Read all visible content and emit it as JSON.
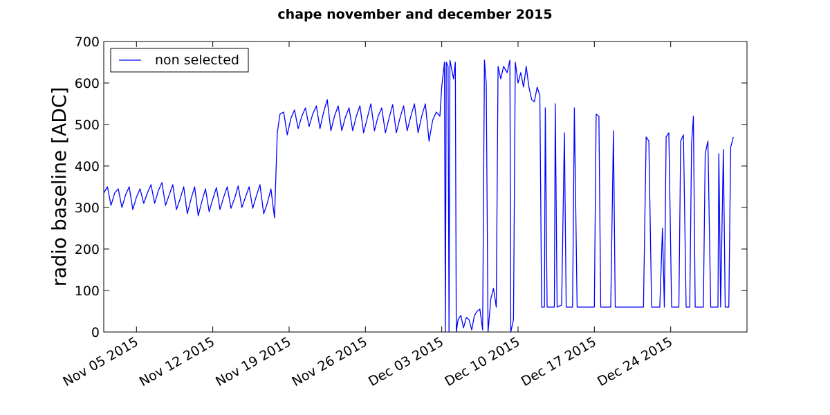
{
  "chart_data": {
    "type": "line",
    "title": "chape november and december 2015",
    "xlabel": "",
    "ylabel": "radio baseline [ADC]",
    "x_range": [
      "2015-11-02",
      "2015-12-31"
    ],
    "ylim": [
      0,
      700
    ],
    "yticks": [
      0,
      100,
      200,
      300,
      400,
      500,
      600,
      700
    ],
    "xticks": [
      {
        "date": "2015-11-05",
        "label": "Nov 05 2015"
      },
      {
        "date": "2015-11-12",
        "label": "Nov 12 2015"
      },
      {
        "date": "2015-11-19",
        "label": "Nov 19 2015"
      },
      {
        "date": "2015-11-26",
        "label": "Nov 26 2015"
      },
      {
        "date": "2015-12-03",
        "label": "Dec 03 2015"
      },
      {
        "date": "2015-12-10",
        "label": "Dec 10 2015"
      },
      {
        "date": "2015-12-17",
        "label": "Dec 17 2015"
      },
      {
        "date": "2015-12-24",
        "label": "Dec 24 2015"
      }
    ],
    "grid": false,
    "legend_position": "top-left",
    "series": [
      {
        "name": "non selected",
        "color": "#0000ff",
        "points": [
          [
            "2015-11-02 00:00",
            335
          ],
          [
            "2015-11-02 08:00",
            350
          ],
          [
            "2015-11-02 16:00",
            305
          ],
          [
            "2015-11-03 00:00",
            335
          ],
          [
            "2015-11-03 08:00",
            345
          ],
          [
            "2015-11-03 16:00",
            300
          ],
          [
            "2015-11-04 00:00",
            330
          ],
          [
            "2015-11-04 08:00",
            350
          ],
          [
            "2015-11-04 16:00",
            295
          ],
          [
            "2015-11-05 00:00",
            325
          ],
          [
            "2015-11-05 08:00",
            345
          ],
          [
            "2015-11-05 16:00",
            310
          ],
          [
            "2015-11-06 00:00",
            335
          ],
          [
            "2015-11-06 08:00",
            355
          ],
          [
            "2015-11-06 16:00",
            310
          ],
          [
            "2015-11-07 00:00",
            340
          ],
          [
            "2015-11-07 08:00",
            360
          ],
          [
            "2015-11-07 16:00",
            305
          ],
          [
            "2015-11-08 00:00",
            330
          ],
          [
            "2015-11-08 08:00",
            355
          ],
          [
            "2015-11-08 16:00",
            295
          ],
          [
            "2015-11-09 00:00",
            320
          ],
          [
            "2015-11-09 08:00",
            350
          ],
          [
            "2015-11-09 16:00",
            285
          ],
          [
            "2015-11-10 00:00",
            320
          ],
          [
            "2015-11-10 08:00",
            350
          ],
          [
            "2015-11-10 16:00",
            280
          ],
          [
            "2015-11-11 00:00",
            315
          ],
          [
            "2015-11-11 08:00",
            345
          ],
          [
            "2015-11-11 16:00",
            290
          ],
          [
            "2015-11-12 00:00",
            320
          ],
          [
            "2015-11-12 08:00",
            348
          ],
          [
            "2015-11-12 16:00",
            295
          ],
          [
            "2015-11-13 00:00",
            325
          ],
          [
            "2015-11-13 08:00",
            350
          ],
          [
            "2015-11-13 16:00",
            298
          ],
          [
            "2015-11-14 00:00",
            322
          ],
          [
            "2015-11-14 08:00",
            352
          ],
          [
            "2015-11-14 16:00",
            300
          ],
          [
            "2015-11-15 00:00",
            325
          ],
          [
            "2015-11-15 08:00",
            350
          ],
          [
            "2015-11-15 16:00",
            298
          ],
          [
            "2015-11-16 00:00",
            328
          ],
          [
            "2015-11-16 08:00",
            355
          ],
          [
            "2015-11-16 16:00",
            285
          ],
          [
            "2015-11-17 00:00",
            310
          ],
          [
            "2015-11-17 08:00",
            345
          ],
          [
            "2015-11-17 16:00",
            275
          ],
          [
            "2015-11-17 22:00",
            480
          ],
          [
            "2015-11-18 04:00",
            525
          ],
          [
            "2015-11-18 12:00",
            530
          ],
          [
            "2015-11-18 20:00",
            475
          ],
          [
            "2015-11-19 04:00",
            515
          ],
          [
            "2015-11-19 12:00",
            535
          ],
          [
            "2015-11-19 20:00",
            490
          ],
          [
            "2015-11-20 04:00",
            520
          ],
          [
            "2015-11-20 12:00",
            540
          ],
          [
            "2015-11-20 20:00",
            495
          ],
          [
            "2015-11-21 04:00",
            525
          ],
          [
            "2015-11-21 12:00",
            545
          ],
          [
            "2015-11-21 20:00",
            490
          ],
          [
            "2015-11-22 04:00",
            530
          ],
          [
            "2015-11-22 12:00",
            560
          ],
          [
            "2015-11-22 20:00",
            485
          ],
          [
            "2015-11-23 04:00",
            520
          ],
          [
            "2015-11-23 12:00",
            545
          ],
          [
            "2015-11-23 20:00",
            485
          ],
          [
            "2015-11-24 04:00",
            518
          ],
          [
            "2015-11-24 12:00",
            540
          ],
          [
            "2015-11-24 20:00",
            485
          ],
          [
            "2015-11-25 04:00",
            520
          ],
          [
            "2015-11-25 12:00",
            545
          ],
          [
            "2015-11-25 20:00",
            480
          ],
          [
            "2015-11-26 04:00",
            515
          ],
          [
            "2015-11-26 12:00",
            550
          ],
          [
            "2015-11-26 20:00",
            485
          ],
          [
            "2015-11-27 04:00",
            520
          ],
          [
            "2015-11-27 12:00",
            540
          ],
          [
            "2015-11-27 20:00",
            480
          ],
          [
            "2015-11-28 04:00",
            515
          ],
          [
            "2015-11-28 12:00",
            548
          ],
          [
            "2015-11-28 20:00",
            480
          ],
          [
            "2015-11-29 04:00",
            515
          ],
          [
            "2015-11-29 12:00",
            545
          ],
          [
            "2015-11-29 20:00",
            485
          ],
          [
            "2015-11-30 04:00",
            520
          ],
          [
            "2015-11-30 12:00",
            550
          ],
          [
            "2015-11-30 20:00",
            480
          ],
          [
            "2015-12-01 04:00",
            520
          ],
          [
            "2015-12-01 12:00",
            550
          ],
          [
            "2015-12-01 20:00",
            460
          ],
          [
            "2015-12-02 04:00",
            510
          ],
          [
            "2015-12-02 12:00",
            530
          ],
          [
            "2015-12-02 20:00",
            520
          ],
          [
            "2015-12-03 00:00",
            590
          ],
          [
            "2015-12-03 06:00",
            650
          ],
          [
            "2015-12-03 08:00",
            0
          ],
          [
            "2015-12-03 10:00",
            650
          ],
          [
            "2015-12-03 14:00",
            640
          ],
          [
            "2015-12-03 16:00",
            0
          ],
          [
            "2015-12-03 18:00",
            655
          ],
          [
            "2015-12-04 02:00",
            610
          ],
          [
            "2015-12-04 06:00",
            650
          ],
          [
            "2015-12-04 08:00",
            0
          ],
          [
            "2015-12-04 12:00",
            30
          ],
          [
            "2015-12-04 18:00",
            40
          ],
          [
            "2015-12-05 00:00",
            10
          ],
          [
            "2015-12-05 06:00",
            35
          ],
          [
            "2015-12-05 12:00",
            30
          ],
          [
            "2015-12-05 18:00",
            5
          ],
          [
            "2015-12-06 00:00",
            40
          ],
          [
            "2015-12-06 06:00",
            50
          ],
          [
            "2015-12-06 12:00",
            55
          ],
          [
            "2015-12-06 18:00",
            5
          ],
          [
            "2015-12-06 22:00",
            655
          ],
          [
            "2015-12-07 02:00",
            600
          ],
          [
            "2015-12-07 06:00",
            0
          ],
          [
            "2015-12-07 12:00",
            80
          ],
          [
            "2015-12-07 18:00",
            105
          ],
          [
            "2015-12-08 00:00",
            60
          ],
          [
            "2015-12-08 04:00",
            640
          ],
          [
            "2015-12-08 10:00",
            610
          ],
          [
            "2015-12-08 16:00",
            640
          ],
          [
            "2015-12-09 00:00",
            625
          ],
          [
            "2015-12-09 06:00",
            655
          ],
          [
            "2015-12-09 08:00",
            0
          ],
          [
            "2015-12-09 14:00",
            30
          ],
          [
            "2015-12-09 18:00",
            650
          ],
          [
            "2015-12-10 00:00",
            600
          ],
          [
            "2015-12-10 06:00",
            625
          ],
          [
            "2015-12-10 12:00",
            590
          ],
          [
            "2015-12-10 18:00",
            640
          ],
          [
            "2015-12-11 00:00",
            590
          ],
          [
            "2015-12-11 06:00",
            560
          ],
          [
            "2015-12-11 12:00",
            555
          ],
          [
            "2015-12-11 18:00",
            590
          ],
          [
            "2015-12-12 00:00",
            570
          ],
          [
            "2015-12-12 04:00",
            60
          ],
          [
            "2015-12-12 10:00",
            60
          ],
          [
            "2015-12-12 12:00",
            540
          ],
          [
            "2015-12-12 16:00",
            60
          ],
          [
            "2015-12-13 08:00",
            60
          ],
          [
            "2015-12-13 10:00",
            550
          ],
          [
            "2015-12-13 14:00",
            60
          ],
          [
            "2015-12-14 00:00",
            65
          ],
          [
            "2015-12-14 06:00",
            480
          ],
          [
            "2015-12-14 10:00",
            60
          ],
          [
            "2015-12-15 00:00",
            60
          ],
          [
            "2015-12-15 04:00",
            540
          ],
          [
            "2015-12-15 10:00",
            60
          ],
          [
            "2015-12-16 12:00",
            60
          ],
          [
            "2015-12-17 00:00",
            60
          ],
          [
            "2015-12-17 04:00",
            525
          ],
          [
            "2015-12-17 10:00",
            520
          ],
          [
            "2015-12-17 14:00",
            60
          ],
          [
            "2015-12-18 12:00",
            60
          ],
          [
            "2015-12-18 18:00",
            485
          ],
          [
            "2015-12-18 22:00",
            60
          ],
          [
            "2015-12-21 12:00",
            60
          ],
          [
            "2015-12-21 18:00",
            470
          ],
          [
            "2015-12-22 00:00",
            460
          ],
          [
            "2015-12-22 06:00",
            60
          ],
          [
            "2015-12-23 00:00",
            60
          ],
          [
            "2015-12-23 06:00",
            250
          ],
          [
            "2015-12-23 10:00",
            60
          ],
          [
            "2015-12-23 14:00",
            470
          ],
          [
            "2015-12-23 20:00",
            480
          ],
          [
            "2015-12-24 02:00",
            60
          ],
          [
            "2015-12-24 18:00",
            60
          ],
          [
            "2015-12-24 22:00",
            460
          ],
          [
            "2015-12-25 04:00",
            475
          ],
          [
            "2015-12-25 10:00",
            60
          ],
          [
            "2015-12-25 18:00",
            60
          ],
          [
            "2015-12-25 22:00",
            455
          ],
          [
            "2015-12-26 02:00",
            520
          ],
          [
            "2015-12-26 06:00",
            60
          ],
          [
            "2015-12-27 00:00",
            60
          ],
          [
            "2015-12-27 04:00",
            430
          ],
          [
            "2015-12-27 10:00",
            460
          ],
          [
            "2015-12-27 16:00",
            60
          ],
          [
            "2015-12-28 08:00",
            60
          ],
          [
            "2015-12-28 10:00",
            430
          ],
          [
            "2015-12-28 14:00",
            60
          ],
          [
            "2015-12-28 20:00",
            440
          ],
          [
            "2015-12-29 00:00",
            60
          ],
          [
            "2015-12-29 08:00",
            60
          ],
          [
            "2015-12-29 12:00",
            445
          ],
          [
            "2015-12-29 18:00",
            470
          ]
        ]
      }
    ]
  }
}
